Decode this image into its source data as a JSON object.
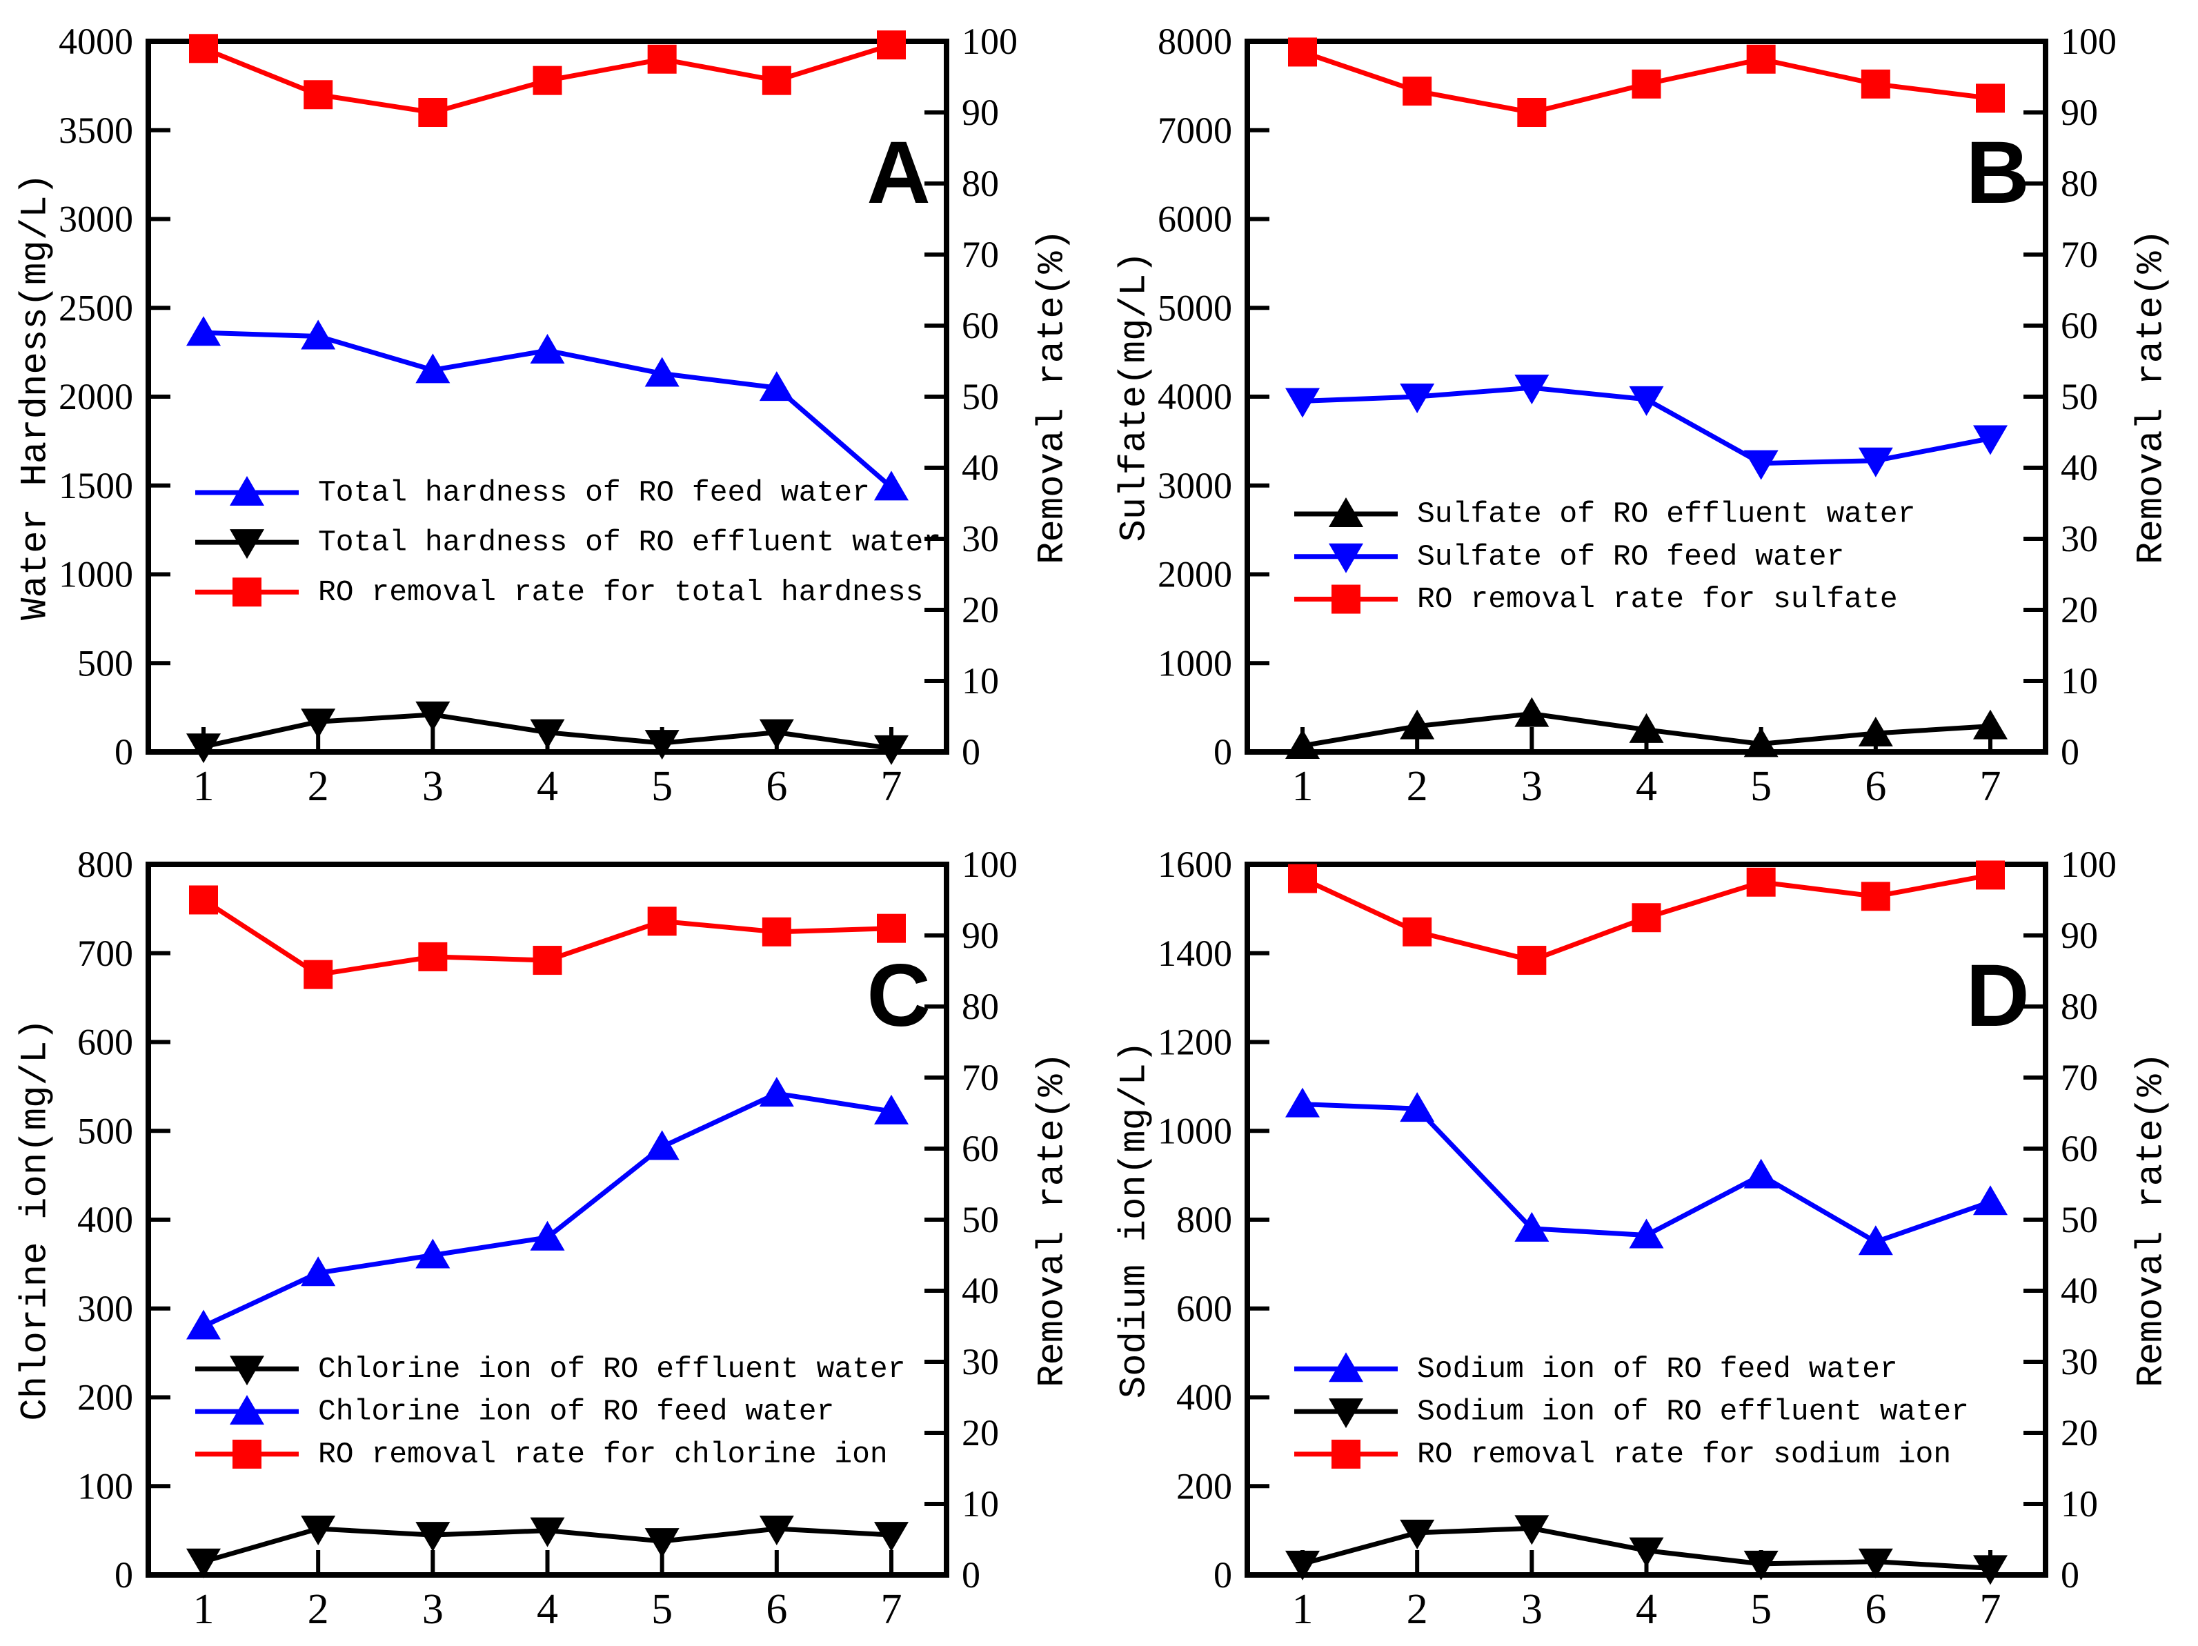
{
  "figure": {
    "background": "#ffffff",
    "colors": {
      "feed": "#0000ff",
      "effluent": "#000000",
      "removal": "#ff0000",
      "axis": "#000000"
    },
    "x_ticks": [
      "1",
      "2",
      "3",
      "4",
      "5",
      "6",
      "7"
    ]
  },
  "chart_data": [
    {
      "type": "line",
      "panel_label": "A",
      "ylabel": "Water Hardness(mg/L)",
      "ylabel_right": "Removal rate(%)",
      "ylim": [
        0,
        4000
      ],
      "ytick_step": 500,
      "ylim_right": [
        0,
        100
      ],
      "ytick_step_right": 10,
      "x": [
        1,
        2,
        3,
        4,
        5,
        6,
        7
      ],
      "grid": false,
      "legend_position": "inside-middle-left",
      "legend_row_fracs": [
        0.635,
        0.705,
        0.775
      ],
      "series": [
        {
          "name": "Total hardness of RO feed water",
          "color": "#0000ff",
          "marker": "triangle-up",
          "axis": "left",
          "values": [
            2360,
            2340,
            2150,
            2260,
            2130,
            2050,
            1490
          ]
        },
        {
          "name": "Total hardness of RO effluent water",
          "color": "#000000",
          "marker": "triangle-down",
          "axis": "left",
          "values": [
            30,
            170,
            210,
            110,
            50,
            110,
            20
          ]
        },
        {
          "name": "RO removal rate for total hardness",
          "color": "#ff0000",
          "marker": "square",
          "axis": "right",
          "values": [
            99,
            92.5,
            90,
            94.5,
            97.5,
            94.5,
            99.5
          ]
        }
      ]
    },
    {
      "type": "line",
      "panel_label": "B",
      "ylabel": "Sulfate(mg/L)",
      "ylabel_right": "Removal rate(%)",
      "ylim": [
        0,
        8000
      ],
      "ytick_step": 1000,
      "ylim_right": [
        0,
        100
      ],
      "ytick_step_right": 10,
      "x": [
        1,
        2,
        3,
        4,
        5,
        6,
        7
      ],
      "grid": false,
      "legend_position": "inside-middle-left",
      "legend_row_fracs": [
        0.665,
        0.725,
        0.785
      ],
      "series": [
        {
          "name": "Sulfate of RO effluent water",
          "color": "#000000",
          "marker": "triangle-up",
          "axis": "left",
          "values": [
            70,
            290,
            430,
            250,
            90,
            210,
            290
          ]
        },
        {
          "name": "Sulfate of RO feed water",
          "color": "#0000ff",
          "marker": "triangle-down",
          "axis": "left",
          "values": [
            3950,
            4000,
            4100,
            3970,
            3250,
            3280,
            3530
          ]
        },
        {
          "name": "RO removal rate for sulfate",
          "color": "#ff0000",
          "marker": "square",
          "axis": "right",
          "values": [
            98.5,
            93,
            90,
            94,
            97.5,
            94,
            92
          ]
        }
      ]
    },
    {
      "type": "line",
      "panel_label": "C",
      "ylabel": "Chlorine ion(mg/L)",
      "ylabel_right": "Removal rate(%)",
      "ylim": [
        0,
        800
      ],
      "ytick_step": 100,
      "ylim_right": [
        0,
        100
      ],
      "ytick_step_right": 10,
      "x": [
        1,
        2,
        3,
        4,
        5,
        6,
        7
      ],
      "grid": false,
      "legend_position": "inside-lower-left",
      "legend_row_fracs": [
        0.71,
        0.77,
        0.83
      ],
      "series": [
        {
          "name": "Chlorine ion of RO effluent water",
          "color": "#000000",
          "marker": "triangle-down",
          "axis": "left",
          "values": [
            15,
            52,
            45,
            50,
            38,
            52,
            45
          ]
        },
        {
          "name": "Chlorine ion of RO feed water",
          "color": "#0000ff",
          "marker": "triangle-up",
          "axis": "left",
          "values": [
            280,
            340,
            360,
            380,
            482,
            542,
            522
          ]
        },
        {
          "name": "RO removal rate for chlorine ion",
          "color": "#ff0000",
          "marker": "square",
          "axis": "right",
          "values": [
            95,
            84.5,
            87,
            86.5,
            92,
            90.5,
            91
          ]
        }
      ]
    },
    {
      "type": "line",
      "panel_label": "D",
      "ylabel": "Sodium ion(mg/L)",
      "ylabel_right": "Removal rate(%)",
      "ylim": [
        0,
        1600
      ],
      "ytick_step": 200,
      "ylim_right": [
        0,
        100
      ],
      "ytick_step_right": 10,
      "x": [
        1,
        2,
        3,
        4,
        5,
        6,
        7
      ],
      "grid": false,
      "legend_position": "inside-lower-left",
      "legend_row_fracs": [
        0.71,
        0.77,
        0.83
      ],
      "series": [
        {
          "name": "Sodium ion of RO feed water",
          "color": "#0000ff",
          "marker": "triangle-up",
          "axis": "left",
          "values": [
            1060,
            1050,
            780,
            765,
            900,
            750,
            840
          ]
        },
        {
          "name": "Sodium ion of RO effluent water",
          "color": "#000000",
          "marker": "triangle-down",
          "axis": "left",
          "values": [
            25,
            95,
            105,
            55,
            25,
            30,
            15
          ]
        },
        {
          "name": "RO removal rate for sodium ion",
          "color": "#ff0000",
          "marker": "square",
          "axis": "right",
          "values": [
            98,
            90.5,
            86.5,
            92.5,
            97.5,
            95.5,
            98.5
          ]
        }
      ]
    }
  ]
}
